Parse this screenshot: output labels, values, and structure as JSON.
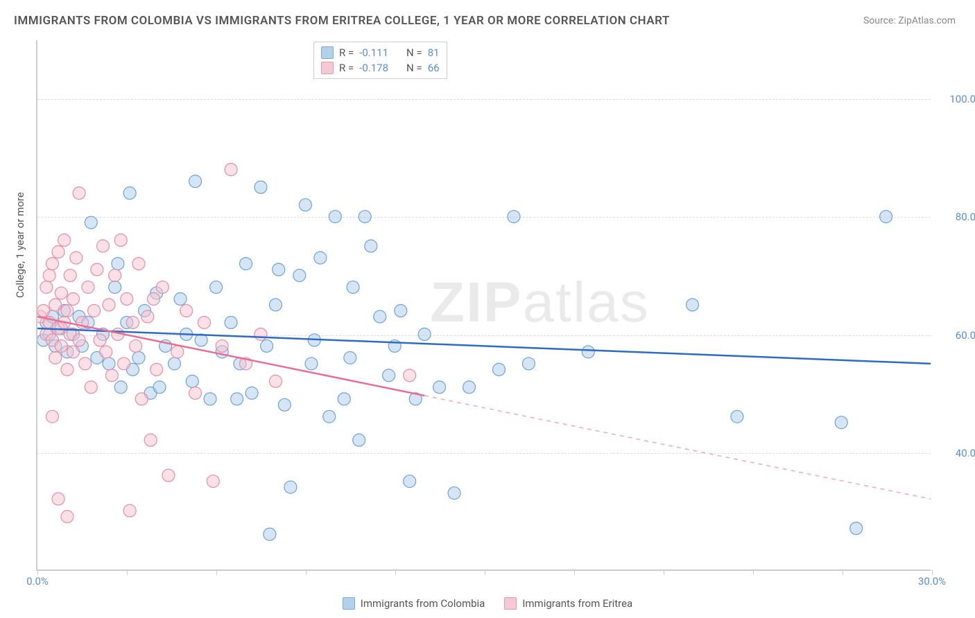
{
  "title": "IMMIGRANTS FROM COLOMBIA VS IMMIGRANTS FROM ERITREA COLLEGE, 1 YEAR OR MORE CORRELATION CHART",
  "source": "Source: ZipAtlas.com",
  "y_axis_label": "College, 1 year or more",
  "watermark": {
    "bold": "ZIP",
    "light": "atlas"
  },
  "chart": {
    "type": "scatter",
    "xlim": [
      0,
      30
    ],
    "ylim": [
      20,
      110
    ],
    "x_ticks": [
      0,
      3,
      6,
      9,
      12,
      15,
      18,
      21,
      24,
      27,
      30
    ],
    "x_tick_labels": {
      "0": "0.0%",
      "30": "30.0%"
    },
    "y_gridlines": [
      40,
      60,
      80,
      100
    ],
    "y_tick_labels": {
      "40": "40.0%",
      "60": "60.0%",
      "80": "80.0%",
      "100": "100.0%"
    },
    "background_color": "#ffffff",
    "grid_color": "#dddddd",
    "axis_color": "#cccccc",
    "point_radius": 9,
    "point_opacity": 0.5,
    "line_width": 2.5,
    "series": [
      {
        "name": "Immigrants from Colombia",
        "color_fill": "#aecce8",
        "color_stroke": "#6ba3db",
        "line_color": "#2d6bc4",
        "R": "-0.111",
        "N": "81",
        "trend": {
          "x1": 0,
          "y1": 61,
          "x2": 30,
          "y2": 55,
          "solid_until_x": 30
        },
        "points": [
          [
            0.2,
            59
          ],
          [
            0.3,
            62
          ],
          [
            0.4,
            60
          ],
          [
            0.5,
            63
          ],
          [
            0.6,
            58
          ],
          [
            0.8,
            61
          ],
          [
            0.9,
            64
          ],
          [
            1.0,
            57
          ],
          [
            1.2,
            60
          ],
          [
            1.4,
            63
          ],
          [
            1.5,
            58
          ],
          [
            1.7,
            62
          ],
          [
            1.8,
            79
          ],
          [
            2.0,
            56
          ],
          [
            2.2,
            60
          ],
          [
            2.4,
            55
          ],
          [
            2.6,
            68
          ],
          [
            2.8,
            51
          ],
          [
            3.0,
            62
          ],
          [
            3.2,
            54
          ],
          [
            3.4,
            56
          ],
          [
            3.6,
            64
          ],
          [
            3.8,
            50
          ],
          [
            4.0,
            67
          ],
          [
            4.3,
            58
          ],
          [
            4.6,
            55
          ],
          [
            4.8,
            66
          ],
          [
            5.0,
            60
          ],
          [
            5.2,
            52
          ],
          [
            5.5,
            59
          ],
          [
            5.8,
            49
          ],
          [
            6.0,
            68
          ],
          [
            6.2,
            57
          ],
          [
            6.5,
            62
          ],
          [
            6.8,
            55
          ],
          [
            7.0,
            72
          ],
          [
            7.2,
            50
          ],
          [
            7.5,
            85
          ],
          [
            7.8,
            26
          ],
          [
            8.0,
            65
          ],
          [
            8.3,
            48
          ],
          [
            8.5,
            34
          ],
          [
            8.8,
            70
          ],
          [
            9.0,
            82
          ],
          [
            9.2,
            55
          ],
          [
            9.5,
            73
          ],
          [
            9.8,
            46
          ],
          [
            10.0,
            80
          ],
          [
            10.3,
            49
          ],
          [
            10.6,
            68
          ],
          [
            10.8,
            42
          ],
          [
            11.0,
            80
          ],
          [
            11.2,
            75
          ],
          [
            11.5,
            63
          ],
          [
            11.8,
            53
          ],
          [
            12.0,
            58
          ],
          [
            12.2,
            64
          ],
          [
            12.5,
            35
          ],
          [
            12.7,
            49
          ],
          [
            13.0,
            60
          ],
          [
            13.5,
            51
          ],
          [
            14.0,
            33
          ],
          [
            14.5,
            51
          ],
          [
            15.5,
            54
          ],
          [
            16.0,
            80
          ],
          [
            16.5,
            55
          ],
          [
            18.5,
            57
          ],
          [
            22.0,
            65
          ],
          [
            23.5,
            46
          ],
          [
            27.0,
            45
          ],
          [
            27.5,
            27
          ],
          [
            28.5,
            80
          ],
          [
            5.3,
            86
          ],
          [
            3.1,
            84
          ],
          [
            2.7,
            72
          ],
          [
            4.1,
            51
          ],
          [
            6.7,
            49
          ],
          [
            9.3,
            59
          ],
          [
            7.7,
            58
          ],
          [
            8.1,
            71
          ],
          [
            10.5,
            56
          ]
        ]
      },
      {
        "name": "Immigrants from Eritrea",
        "color_fill": "#f5c4cf",
        "color_stroke": "#ea8ba5",
        "line_color": "#e86f92",
        "R": "-0.178",
        "N": "66",
        "trend": {
          "x1": 0,
          "y1": 63,
          "x2": 30,
          "y2": 32,
          "solid_until_x": 13
        },
        "points": [
          [
            0.1,
            63
          ],
          [
            0.2,
            64
          ],
          [
            0.3,
            60
          ],
          [
            0.3,
            68
          ],
          [
            0.4,
            62
          ],
          [
            0.4,
            70
          ],
          [
            0.5,
            59
          ],
          [
            0.5,
            72
          ],
          [
            0.6,
            65
          ],
          [
            0.6,
            56
          ],
          [
            0.7,
            61
          ],
          [
            0.7,
            74
          ],
          [
            0.8,
            58
          ],
          [
            0.8,
            67
          ],
          [
            0.9,
            62
          ],
          [
            0.9,
            76
          ],
          [
            1.0,
            54
          ],
          [
            1.0,
            64
          ],
          [
            1.1,
            60
          ],
          [
            1.1,
            70
          ],
          [
            1.2,
            57
          ],
          [
            1.2,
            66
          ],
          [
            1.3,
            73
          ],
          [
            1.4,
            59
          ],
          [
            1.4,
            84
          ],
          [
            1.5,
            62
          ],
          [
            1.6,
            55
          ],
          [
            1.7,
            68
          ],
          [
            1.8,
            51
          ],
          [
            1.9,
            64
          ],
          [
            2.0,
            71
          ],
          [
            2.1,
            59
          ],
          [
            2.2,
            75
          ],
          [
            2.3,
            57
          ],
          [
            2.4,
            65
          ],
          [
            2.5,
            53
          ],
          [
            2.6,
            70
          ],
          [
            2.7,
            60
          ],
          [
            2.8,
            76
          ],
          [
            2.9,
            55
          ],
          [
            3.0,
            66
          ],
          [
            3.1,
            30
          ],
          [
            3.2,
            62
          ],
          [
            3.3,
            58
          ],
          [
            3.4,
            72
          ],
          [
            3.5,
            49
          ],
          [
            3.7,
            63
          ],
          [
            3.8,
            42
          ],
          [
            3.9,
            66
          ],
          [
            4.0,
            54
          ],
          [
            4.2,
            68
          ],
          [
            4.4,
            36
          ],
          [
            4.7,
            57
          ],
          [
            5.0,
            64
          ],
          [
            5.3,
            50
          ],
          [
            5.6,
            62
          ],
          [
            5.9,
            35
          ],
          [
            6.2,
            58
          ],
          [
            6.5,
            88
          ],
          [
            7.0,
            55
          ],
          [
            7.5,
            60
          ],
          [
            8.0,
            52
          ],
          [
            1.0,
            29
          ],
          [
            0.7,
            32
          ],
          [
            12.5,
            53
          ],
          [
            0.5,
            46
          ]
        ]
      }
    ]
  },
  "legend_bottom": [
    {
      "label": "Immigrants from Colombia",
      "fill": "#aecce8",
      "stroke": "#6ba3db"
    },
    {
      "label": "Immigrants from Eritrea",
      "fill": "#f5c4cf",
      "stroke": "#ea8ba5"
    }
  ]
}
